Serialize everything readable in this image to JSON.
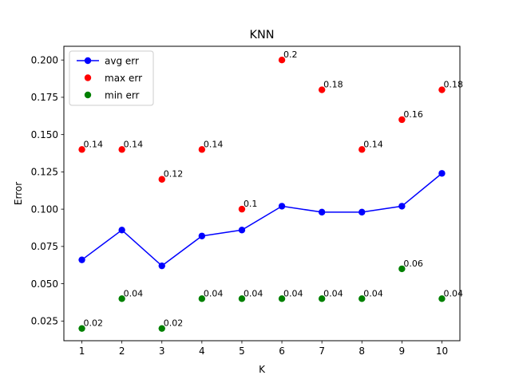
{
  "chart_data": {
    "type": "line",
    "title": "KNN",
    "xlabel": "K",
    "ylabel": "Error",
    "x": [
      1,
      2,
      3,
      4,
      5,
      6,
      7,
      8,
      9,
      10
    ],
    "xlim": [
      0.55,
      10.45
    ],
    "ylim": [
      0.0118,
      0.2092
    ],
    "yticks": [
      0.025,
      0.05,
      0.075,
      0.1,
      0.125,
      0.15,
      0.175,
      0.2
    ],
    "ytick_labels": [
      "0.025",
      "0.050",
      "0.075",
      "0.100",
      "0.125",
      "0.150",
      "0.175",
      "0.200"
    ],
    "xtick_labels": [
      "1",
      "2",
      "3",
      "4",
      "5",
      "6",
      "7",
      "8",
      "9",
      "10"
    ],
    "grid": false,
    "legend_position": "top-left",
    "series": [
      {
        "name": "avg err",
        "style": "line-marker",
        "color": "#0000ff",
        "values": [
          0.066,
          0.086,
          0.062,
          0.082,
          0.086,
          0.102,
          0.098,
          0.098,
          0.102,
          0.124
        ]
      },
      {
        "name": "max err",
        "style": "marker",
        "color": "#ff0000",
        "values": [
          0.14,
          0.14,
          0.12,
          0.14,
          0.1,
          0.2,
          0.18,
          0.14,
          0.16,
          0.18
        ],
        "labels": [
          "0.14",
          "0.14",
          "0.12",
          "0.14",
          "0.1",
          "0.2",
          "0.18",
          "0.14",
          "0.16",
          "0.18"
        ]
      },
      {
        "name": "min err",
        "style": "marker",
        "color": "#008000",
        "values": [
          0.02,
          0.04,
          0.02,
          0.04,
          0.04,
          0.04,
          0.04,
          0.04,
          0.06,
          0.04
        ],
        "labels": [
          "0.02",
          "0.04",
          "0.02",
          "0.04",
          "0.04",
          "0.04",
          "0.04",
          "0.04",
          "0.06",
          "0.04"
        ]
      }
    ]
  }
}
